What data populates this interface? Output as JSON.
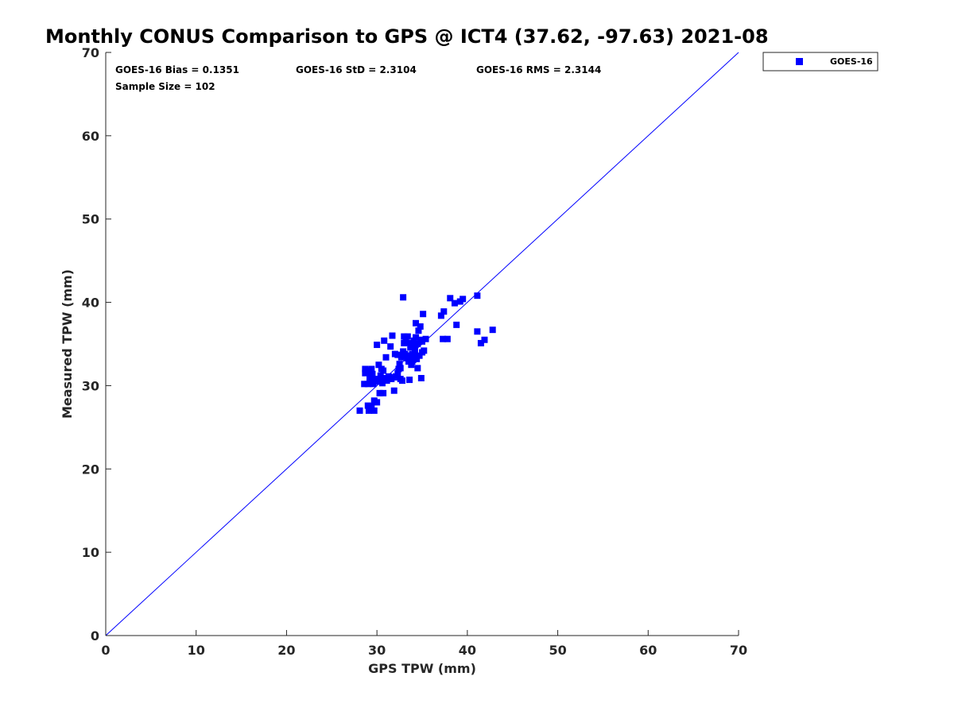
{
  "chart_data": {
    "type": "scatter",
    "title": "Monthly CONUS Comparison to GPS @ ICT4 (37.62, -97.63) 2021-08",
    "xlabel": "GPS TPW (mm)",
    "ylabel": "Measured TPW (mm)",
    "xlim": [
      0,
      70
    ],
    "ylim": [
      0,
      70
    ],
    "xticks": [
      "0",
      "10",
      "20",
      "30",
      "40",
      "50",
      "60",
      "70"
    ],
    "yticks": [
      "0",
      "10",
      "20",
      "30",
      "40",
      "50",
      "60",
      "70"
    ],
    "grid": false,
    "legend_position": "top-right",
    "marker_color": "#0000ff",
    "reference_line": {
      "from": [
        0,
        0
      ],
      "to": [
        70,
        70
      ],
      "color": "#0000ff"
    },
    "stats": {
      "bias": "GOES-16 Bias = 0.1351",
      "std": "GOES-16 StD = 2.3104",
      "rms": "GOES-16 RMS = 2.3144",
      "sample_size": "Sample Size = 102"
    },
    "series": [
      {
        "name": "GOES-16",
        "points": [
          [
            28.1,
            27.0
          ],
          [
            28.6,
            30.2
          ],
          [
            28.7,
            31.5
          ],
          [
            28.7,
            32.0
          ],
          [
            28.8,
            31.8
          ],
          [
            29.0,
            27.6
          ],
          [
            29.1,
            27.0
          ],
          [
            29.2,
            30.4
          ],
          [
            29.2,
            31.0
          ],
          [
            29.3,
            31.6
          ],
          [
            29.4,
            32.0
          ],
          [
            29.4,
            27.5
          ],
          [
            29.5,
            30.9
          ],
          [
            29.5,
            31.4
          ],
          [
            29.6,
            30.2
          ],
          [
            29.7,
            27.0
          ],
          [
            29.7,
            28.2
          ],
          [
            29.9,
            30.5
          ],
          [
            30.0,
            28.0
          ],
          [
            30.0,
            34.9
          ],
          [
            30.1,
            30.8
          ],
          [
            30.2,
            32.5
          ],
          [
            30.3,
            29.1
          ],
          [
            30.4,
            31.2
          ],
          [
            30.5,
            32.0
          ],
          [
            30.6,
            30.3
          ],
          [
            30.7,
            31.8
          ],
          [
            30.7,
            29.1
          ],
          [
            30.8,
            35.4
          ],
          [
            30.9,
            30.9
          ],
          [
            31.0,
            33.4
          ],
          [
            31.1,
            30.6
          ],
          [
            31.3,
            31.1
          ],
          [
            31.5,
            34.7
          ],
          [
            31.6,
            30.8
          ],
          [
            31.7,
            36.0
          ],
          [
            31.9,
            29.4
          ],
          [
            32.0,
            33.8
          ],
          [
            32.1,
            31.1
          ],
          [
            32.2,
            31.0
          ],
          [
            32.3,
            33.7
          ],
          [
            32.4,
            32.0
          ],
          [
            32.5,
            32.6
          ],
          [
            32.6,
            30.8
          ],
          [
            32.7,
            33.4
          ],
          [
            32.8,
            30.6
          ],
          [
            32.9,
            34.1
          ],
          [
            32.9,
            40.6
          ],
          [
            33.0,
            35.9
          ],
          [
            33.0,
            35.1
          ],
          [
            33.1,
            33.8
          ],
          [
            33.2,
            35.2
          ],
          [
            33.3,
            33.3
          ],
          [
            33.4,
            35.9
          ],
          [
            33.5,
            32.9
          ],
          [
            33.6,
            30.7
          ],
          [
            33.7,
            34.6
          ],
          [
            33.8,
            35.1
          ],
          [
            33.8,
            32.5
          ],
          [
            33.9,
            33.8
          ],
          [
            34.0,
            33.1
          ],
          [
            34.1,
            35.4
          ],
          [
            34.2,
            34.4
          ],
          [
            34.3,
            35.8
          ],
          [
            34.3,
            37.5
          ],
          [
            34.4,
            33.2
          ],
          [
            34.5,
            35.0
          ],
          [
            34.5,
            32.1
          ],
          [
            34.6,
            36.6
          ],
          [
            34.7,
            33.6
          ],
          [
            34.8,
            37.1
          ],
          [
            34.8,
            35.5
          ],
          [
            34.9,
            30.9
          ],
          [
            35.0,
            34.0
          ],
          [
            35.1,
            38.6
          ],
          [
            35.2,
            34.2
          ],
          [
            35.4,
            35.6
          ],
          [
            37.1,
            38.4
          ],
          [
            37.3,
            35.6
          ],
          [
            37.4,
            38.9
          ],
          [
            37.8,
            35.6
          ],
          [
            38.1,
            40.5
          ],
          [
            38.6,
            39.9
          ],
          [
            38.8,
            37.3
          ],
          [
            39.2,
            40.1
          ],
          [
            39.5,
            40.4
          ],
          [
            41.1,
            40.8
          ],
          [
            41.1,
            36.5
          ],
          [
            41.5,
            35.1
          ],
          [
            41.9,
            35.5
          ],
          [
            42.8,
            36.7
          ],
          [
            33.6,
            33.3
          ],
          [
            34.2,
            33.9
          ],
          [
            32.6,
            32.1
          ],
          [
            31.4,
            31.0
          ],
          [
            29.0,
            30.2
          ],
          [
            30.3,
            30.5
          ],
          [
            33.2,
            33.6
          ],
          [
            34.0,
            35.0
          ],
          [
            32.3,
            31.5
          ],
          [
            33.9,
            32.9
          ],
          [
            35.0,
            35.3
          ]
        ]
      }
    ]
  }
}
